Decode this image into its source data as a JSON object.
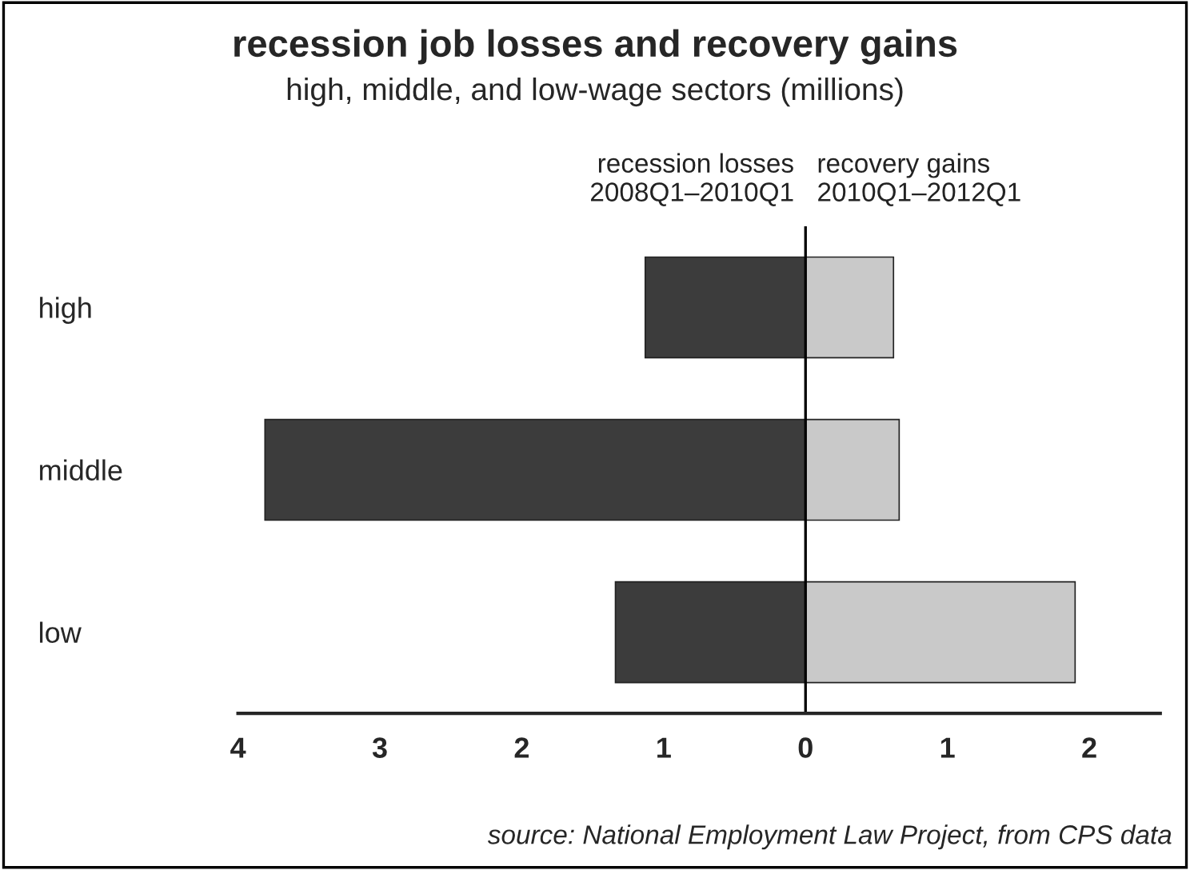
{
  "chart_data": {
    "type": "bar",
    "orientation": "horizontal",
    "stacked": true,
    "title": "recession job losses and recovery gains",
    "subtitle": "high, middle, and low-wage sectors (millions)",
    "categories": [
      "high",
      "middle",
      "low"
    ],
    "series": [
      {
        "name": "recession losses\n2008Q1–2010Q1",
        "color": "#3c3c3c",
        "values": [
          -1.13,
          -3.81,
          -1.34
        ]
      },
      {
        "name": "recovery gains\n2010Q1–2012Q1",
        "color": "#c9c9c9",
        "values": [
          0.62,
          0.66,
          1.9
        ]
      }
    ],
    "xlim": [
      -4.0,
      2.5
    ],
    "xticks": [
      {
        "value": -4,
        "label": "4"
      },
      {
        "value": -3,
        "label": "3"
      },
      {
        "value": -2,
        "label": "2"
      },
      {
        "value": -1,
        "label": "1"
      },
      0,
      1,
      2
    ],
    "ref_lines": [
      {
        "axis": "x",
        "value": 0,
        "label": null,
        "color": "#000000"
      }
    ],
    "grid": false,
    "legend": false,
    "annotations": [
      "source: National Employment Law Project, from CPS data"
    ]
  }
}
